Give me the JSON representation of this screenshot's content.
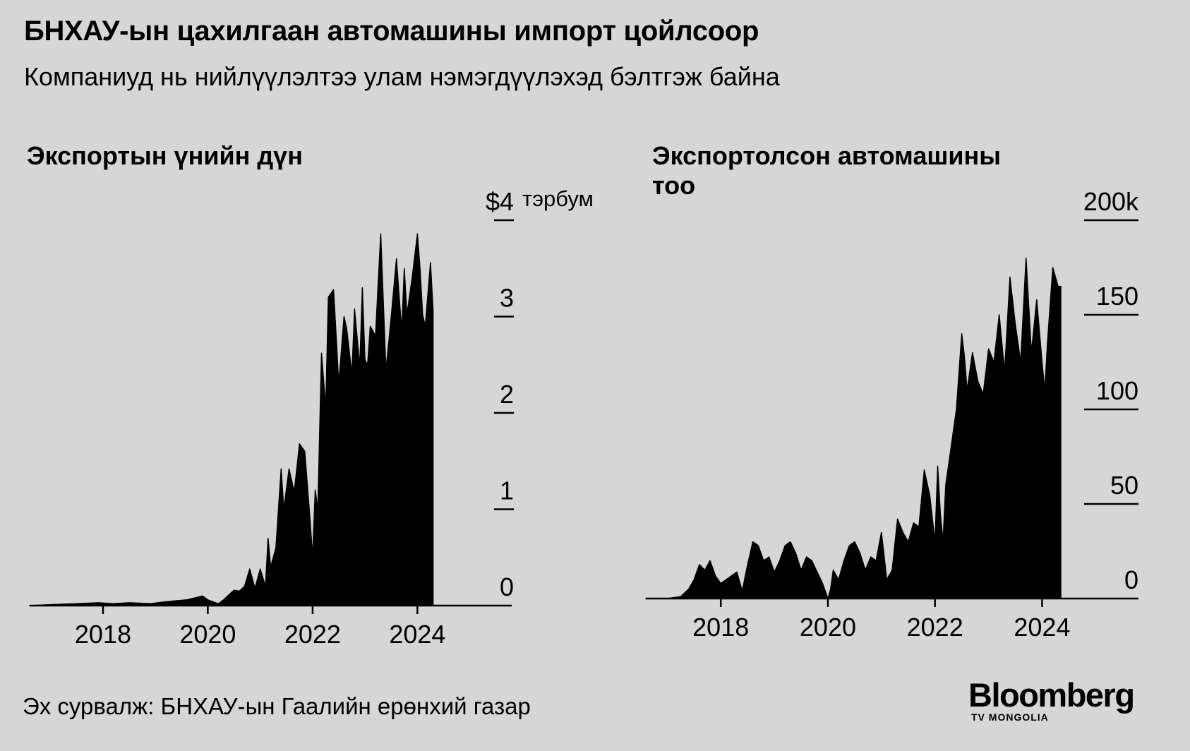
{
  "title": "БНХАУ-ын цахилгаан автомашины импорт цойлсоор",
  "subtitle": "Компаниуд нь нийлүүлэлтээ улам нэмэгдүүлэхэд бэлтгэж байна",
  "source": "Эх сурвалж: БНХАУ-ын Гаалийн ерөнхий газар",
  "logo": {
    "main": "Bloomberg",
    "sub": "TV MONGOLIA"
  },
  "colors": {
    "background": "#d6d6d6",
    "fill": "#000000"
  },
  "chart_data": [
    {
      "type": "area",
      "title": "Экспортын үнийн дүн",
      "x_ticks": [
        "2018",
        "2020",
        "2022",
        "2024"
      ],
      "x_tick_values": [
        2018,
        2020,
        2022,
        2024
      ],
      "x_range": [
        2016.6,
        2025.8
      ],
      "y_ticks": [
        "0",
        "1",
        "2",
        "3"
      ],
      "y_tick_values": [
        0,
        1,
        2,
        3
      ],
      "y_top_tick_label": "$4",
      "y_unit": "тэрбум",
      "ylim": [
        0,
        4
      ],
      "series": [
        {
          "x": [
            2016.6,
            2017.0,
            2017.5,
            2017.9,
            2018.2,
            2018.5,
            2018.9,
            2019.2,
            2019.6,
            2019.9,
            2020.0,
            2020.2,
            2020.3,
            2020.5,
            2020.6,
            2020.7,
            2020.8,
            2020.9,
            2021.0,
            2021.1,
            2021.15,
            2021.2,
            2021.3,
            2021.4,
            2021.45,
            2021.55,
            2021.65,
            2021.75,
            2021.85,
            2021.95,
            2022.0,
            2022.05,
            2022.1,
            2022.17,
            2022.25,
            2022.3,
            2022.4,
            2022.5,
            2022.6,
            2022.65,
            2022.75,
            2022.8,
            2022.9,
            2022.95,
            2023.0,
            2023.05,
            2023.1,
            2023.2,
            2023.3,
            2023.4,
            2023.5,
            2023.6,
            2023.7,
            2023.75,
            2023.8,
            2023.9,
            2024.0,
            2024.05,
            2024.1,
            2024.15,
            2024.25,
            2024.3
          ],
          "y": [
            0.0,
            0.01,
            0.02,
            0.03,
            0.02,
            0.03,
            0.02,
            0.04,
            0.06,
            0.1,
            0.06,
            0.02,
            0.06,
            0.16,
            0.15,
            0.2,
            0.38,
            0.18,
            0.38,
            0.2,
            0.7,
            0.4,
            0.6,
            1.42,
            1.0,
            1.42,
            1.18,
            1.68,
            1.6,
            0.9,
            0.5,
            1.2,
            1.0,
            2.62,
            2.05,
            3.2,
            3.28,
            2.3,
            3.0,
            2.88,
            2.4,
            3.08,
            2.48,
            3.3,
            2.55,
            2.5,
            2.9,
            2.8,
            3.86,
            2.44,
            3.0,
            3.6,
            2.85,
            3.5,
            3.02,
            3.4,
            3.86,
            3.5,
            3.02,
            2.9,
            3.56,
            3.06
          ]
        }
      ]
    },
    {
      "type": "area",
      "title": "Экспортолсон автомашины тоо",
      "x_ticks": [
        "2018",
        "2020",
        "2022",
        "2024"
      ],
      "x_tick_values": [
        2018,
        2020,
        2022,
        2024
      ],
      "x_range": [
        2016.6,
        2025.8
      ],
      "y_ticks": [
        "0",
        "50",
        "100",
        "150",
        "200k"
      ],
      "y_tick_values": [
        0,
        50,
        100,
        150,
        200
      ],
      "ylim": [
        0,
        200
      ],
      "series": [
        {
          "x": [
            2016.6,
            2017.0,
            2017.25,
            2017.4,
            2017.5,
            2017.6,
            2017.7,
            2017.8,
            2017.9,
            2018.0,
            2018.1,
            2018.2,
            2018.3,
            2018.4,
            2018.5,
            2018.6,
            2018.7,
            2018.8,
            2018.9,
            2019.0,
            2019.1,
            2019.2,
            2019.3,
            2019.4,
            2019.5,
            2019.6,
            2019.7,
            2019.8,
            2019.9,
            2020.0,
            2020.05,
            2020.1,
            2020.2,
            2020.3,
            2020.4,
            2020.5,
            2020.6,
            2020.7,
            2020.8,
            2020.9,
            2021.0,
            2021.1,
            2021.2,
            2021.3,
            2021.4,
            2021.5,
            2021.6,
            2021.7,
            2021.8,
            2021.9,
            2022.0,
            2022.05,
            2022.1,
            2022.15,
            2022.2,
            2022.3,
            2022.4,
            2022.5,
            2022.55,
            2022.6,
            2022.7,
            2022.8,
            2022.9,
            2023.0,
            2023.1,
            2023.2,
            2023.3,
            2023.4,
            2023.5,
            2023.6,
            2023.7,
            2023.8,
            2023.9,
            2024.0,
            2024.05,
            2024.1,
            2024.2,
            2024.3,
            2024.35
          ],
          "y": [
            0,
            0,
            1,
            5,
            10,
            18,
            15,
            20,
            12,
            8,
            10,
            12,
            14,
            4,
            18,
            30,
            28,
            20,
            22,
            14,
            20,
            28,
            30,
            24,
            15,
            22,
            20,
            14,
            8,
            0,
            5,
            15,
            10,
            20,
            28,
            30,
            24,
            15,
            22,
            20,
            35,
            10,
            15,
            42,
            35,
            30,
            40,
            38,
            68,
            55,
            30,
            70,
            45,
            30,
            60,
            80,
            100,
            140,
            128,
            110,
            130,
            115,
            108,
            132,
            125,
            150,
            120,
            170,
            145,
            125,
            180,
            130,
            158,
            125,
            110,
            135,
            175,
            165,
            165
          ]
        }
      ]
    }
  ]
}
